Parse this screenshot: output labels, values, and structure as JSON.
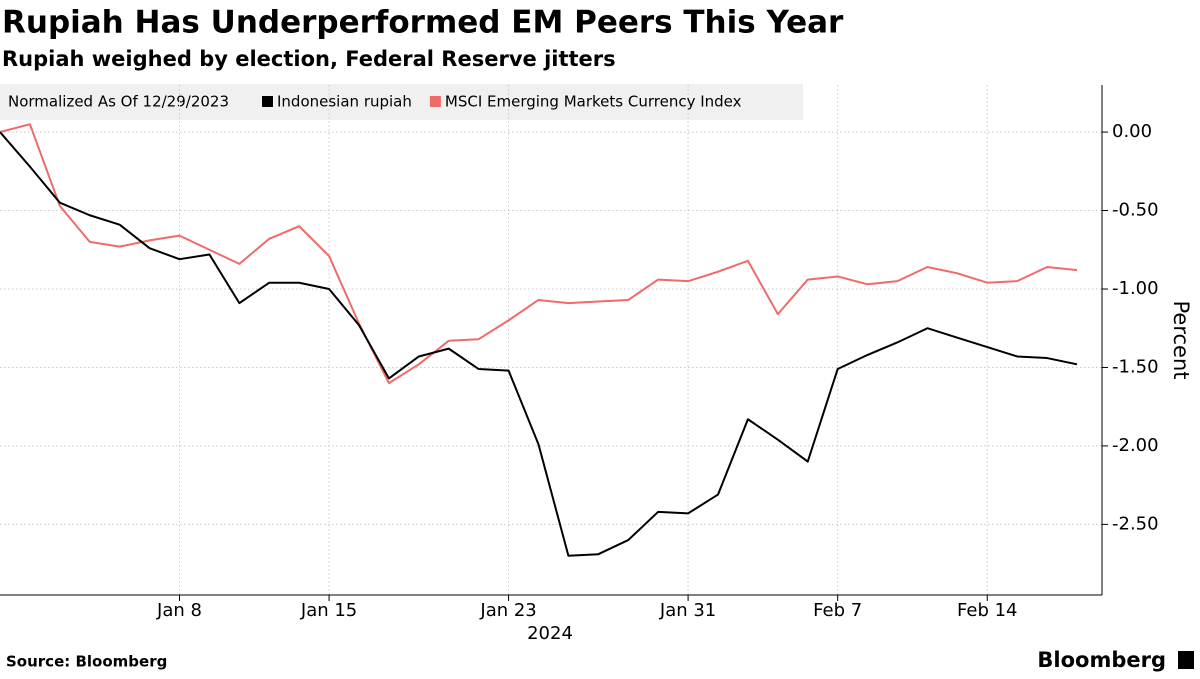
{
  "chart_data": {
    "type": "line",
    "title": "Rupiah Has Underperformed EM Peers This Year",
    "subtitle": "Rupiah weighed by election, Federal Reserve jitters",
    "legend_title": "Normalized As Of 12/29/2023",
    "y_label": "Percent",
    "x_year_label": "2024",
    "source": "Source: Bloomberg",
    "brand": "Bloomberg",
    "categories": [
      null,
      null,
      null,
      null,
      null,
      null,
      "Jan 8",
      null,
      null,
      null,
      null,
      "Jan 15",
      null,
      null,
      null,
      null,
      null,
      "Jan 23",
      null,
      null,
      null,
      null,
      null,
      "Jan 31",
      null,
      null,
      null,
      null,
      "Feb 7",
      null,
      null,
      null,
      null,
      "Feb 14",
      null,
      null,
      null
    ],
    "series": [
      {
        "name": "Indonesian rupiah",
        "color": "#000000",
        "values": [
          0,
          -0.22,
          -0.45,
          -0.53,
          -0.59,
          -0.74,
          -0.81,
          -0.78,
          -1.09,
          -0.96,
          -0.96,
          -1.0,
          -1.23,
          -1.57,
          -1.43,
          -1.38,
          -1.51,
          -1.52,
          -1.99,
          -2.7,
          -2.69,
          -2.6,
          -2.42,
          -2.43,
          -2.31,
          -1.83,
          -1.96,
          -2.1,
          -1.51,
          -1.42,
          -1.34,
          -1.25,
          -1.31,
          -1.37,
          -1.43,
          -1.44,
          -1.48
        ]
      },
      {
        "name": "MSCI Emerging Markets Currency Index",
        "color": "#f06a6a",
        "values": [
          0,
          0.05,
          -0.47,
          -0.7,
          -0.73,
          -0.69,
          -0.66,
          -0.75,
          -0.84,
          -0.68,
          -0.6,
          -0.79,
          -1.22,
          -1.6,
          -1.48,
          -1.33,
          -1.32,
          -1.2,
          -1.07,
          -1.09,
          -1.08,
          -1.07,
          -0.94,
          -0.95,
          -0.89,
          -0.82,
          -1.16,
          -0.94,
          -0.92,
          -0.97,
          -0.95,
          -0.86,
          -0.9,
          -0.96,
          -0.95,
          -0.86,
          -0.88
        ]
      }
    ],
    "ylim": [
      -2.95,
      0.3
    ],
    "yticks": [
      {
        "value": 0,
        "label": "0.00"
      },
      {
        "value": -0.5,
        "label": "-0.50"
      },
      {
        "value": -1,
        "label": "-1.00"
      },
      {
        "value": -1.5,
        "label": "-1.50"
      },
      {
        "value": -2,
        "label": "-2.00"
      },
      {
        "value": -2.5,
        "label": "-2.50"
      }
    ],
    "grid": true
  }
}
